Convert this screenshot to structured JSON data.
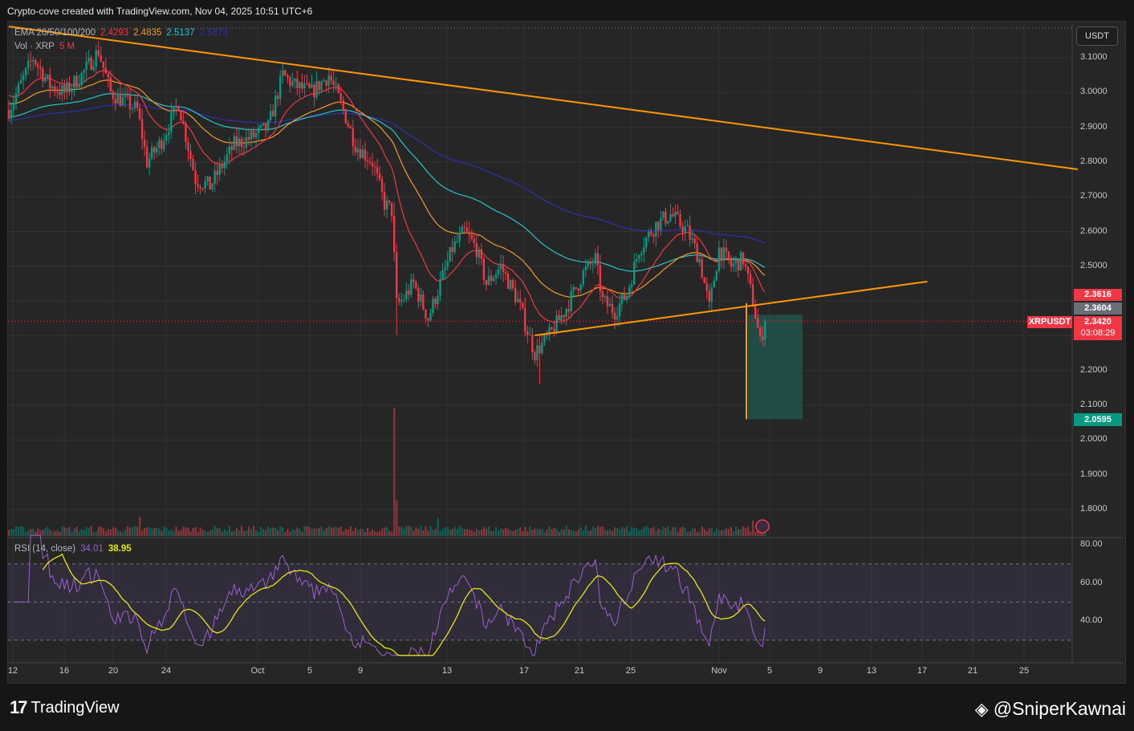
{
  "header": {
    "caption": "Crypto-cove created with TradingView.com, Nov 04, 2025 10:51 UTC+6"
  },
  "legend": {
    "ema_label": "EMA 20/50/100/200",
    "ema_values": [
      "2.4293",
      "2.4835",
      "2.5137",
      "2.5873"
    ],
    "vol_label": "Vol · XRP",
    "vol_value": "5 M",
    "rsi_label": "RSI (14, close)",
    "rsi_value": "34.01",
    "rsi_ma_value": "38.95"
  },
  "currency_button": "USDT",
  "price_labels": {
    "high_line": "2.3616",
    "prev_close": "2.3604",
    "symbol": "XRPUSDT",
    "last": "2.3420",
    "countdown": "03:08:29",
    "target": "2.0595"
  },
  "footer": {
    "brand": "TradingView",
    "handle": "@SniperKawnai"
  },
  "colors": {
    "up": "#089981",
    "down": "#f23645",
    "ema20": "#f23645",
    "ema50": "#f59a23",
    "ema100": "#26c6c6",
    "ema200": "#2f2fb4",
    "trend": "#ff9800",
    "rsi": "#9c5fd0",
    "rsi_ma": "#e5e510"
  },
  "chart_data": {
    "type": "candlestick",
    "title": "XRPUSDT",
    "y_ticks": [
      "3.1000",
      "3.0000",
      "2.9000",
      "2.8000",
      "2.7000",
      "2.6000",
      "2.5000",
      "2.2000",
      "2.1000",
      "2.0000",
      "1.9000",
      "1.8000"
    ],
    "ylim": [
      1.76,
      3.2
    ],
    "x_ticks": [
      "12",
      "16",
      "20",
      "24",
      "Oct",
      "5",
      "9",
      "13",
      "17",
      "21",
      "25",
      "Nov",
      "5",
      "9",
      "13",
      "17",
      "21",
      "25"
    ],
    "rsi_ticks": [
      "80.00",
      "60.00",
      "40.00"
    ],
    "rsi_bands": [
      70,
      50,
      30
    ],
    "bars": 313,
    "price_path": [
      [
        0,
        2.95
      ],
      [
        10,
        3.1
      ],
      [
        17,
        3.02
      ],
      [
        23,
        3.0
      ],
      [
        30,
        3.05
      ],
      [
        37,
        3.12
      ],
      [
        42,
        3.0
      ],
      [
        53,
        2.95
      ],
      [
        57,
        2.8
      ],
      [
        63,
        2.86
      ],
      [
        70,
        2.97
      ],
      [
        77,
        2.75
      ],
      [
        83,
        2.73
      ],
      [
        93,
        2.85
      ],
      [
        100,
        2.87
      ],
      [
        107,
        2.9
      ],
      [
        113,
        3.05
      ],
      [
        118,
        3.02
      ],
      [
        125,
        3.0
      ],
      [
        132,
        3.05
      ],
      [
        138,
        2.95
      ],
      [
        143,
        2.85
      ],
      [
        150,
        2.8
      ],
      [
        155,
        2.68
      ],
      [
        158,
        2.66
      ],
      [
        160,
        2.39
      ],
      [
        162,
        2.4
      ],
      [
        167,
        2.45
      ],
      [
        173,
        2.35
      ],
      [
        178,
        2.45
      ],
      [
        183,
        2.55
      ],
      [
        188,
        2.6
      ],
      [
        193,
        2.55
      ],
      [
        197,
        2.45
      ],
      [
        203,
        2.5
      ],
      [
        210,
        2.4
      ],
      [
        217,
        2.25
      ],
      [
        223,
        2.3
      ],
      [
        230,
        2.38
      ],
      [
        237,
        2.48
      ],
      [
        242,
        2.52
      ],
      [
        245,
        2.4
      ],
      [
        250,
        2.37
      ],
      [
        255,
        2.42
      ],
      [
        260,
        2.55
      ],
      [
        267,
        2.62
      ],
      [
        273,
        2.65
      ],
      [
        280,
        2.6
      ],
      [
        285,
        2.52
      ],
      [
        289,
        2.38
      ],
      [
        293,
        2.55
      ],
      [
        298,
        2.5
      ],
      [
        303,
        2.52
      ],
      [
        307,
        2.4
      ],
      [
        310,
        2.28
      ],
      [
        312,
        2.342
      ]
    ],
    "ema_seed": {
      "ema20": 3.0,
      "ema50": 2.97,
      "ema100": 2.93,
      "ema200": 2.92
    },
    "volume_spikes": [
      [
        159,
        1.0
      ],
      [
        160,
        0.28
      ],
      [
        54,
        0.15
      ],
      [
        177,
        0.14
      ],
      [
        307,
        0.12
      ]
    ],
    "drawings": {
      "descending_trendline": [
        [
          0,
          3.19
        ],
        [
          441,
          2.779
        ]
      ],
      "ascending_trendline": [
        [
          217,
          2.301
        ],
        [
          379,
          2.456
        ]
      ],
      "target_projection": {
        "from": 2.394,
        "to": 2.0595,
        "box_top": 2.3604
      }
    }
  }
}
